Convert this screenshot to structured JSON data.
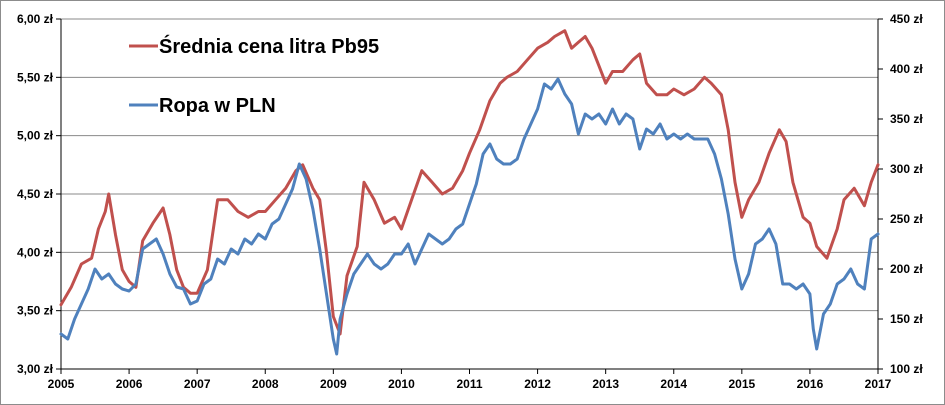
{
  "chart_data": {
    "type": "line",
    "x_ticks": [
      "2005",
      "2006",
      "2007",
      "2008",
      "2009",
      "2010",
      "2011",
      "2012",
      "2013",
      "2014",
      "2015",
      "2016",
      "2017"
    ],
    "xlim": [
      2005,
      2017
    ],
    "left_axis": {
      "ylim": [
        3.0,
        6.0
      ],
      "ticks": [
        3.0,
        3.5,
        4.0,
        4.5,
        5.0,
        5.5,
        6.0
      ],
      "tick_labels": [
        "3,00 zł",
        "3,50 zł",
        "4,00 zł",
        "4,50 zł",
        "5,00 zł",
        "5,50 zł",
        "6,00 zł"
      ]
    },
    "right_axis": {
      "ylim": [
        100,
        450
      ],
      "ticks": [
        100,
        150,
        200,
        250,
        300,
        350,
        400,
        450
      ],
      "tick_labels": [
        "100 zł",
        "150 zł",
        "200 zł",
        "250 zł",
        "300 zł",
        "350 zł",
        "400 zł",
        "450 zł"
      ]
    },
    "grid": true,
    "legend_position": "top-left",
    "series": [
      {
        "name": "Średnia cena litra Pb95",
        "axis": "left",
        "color": "#c0504d",
        "x": [
          2005.0,
          2005.15,
          2005.3,
          2005.45,
          2005.55,
          2005.65,
          2005.7,
          2005.8,
          2005.9,
          2006.0,
          2006.1,
          2006.2,
          2006.35,
          2006.5,
          2006.6,
          2006.7,
          2006.8,
          2006.9,
          2007.0,
          2007.15,
          2007.3,
          2007.45,
          2007.6,
          2007.75,
          2007.9,
          2008.0,
          2008.15,
          2008.3,
          2008.45,
          2008.55,
          2008.7,
          2008.8,
          2008.9,
          2009.0,
          2009.1,
          2009.2,
          2009.35,
          2009.45,
          2009.6,
          2009.75,
          2009.9,
          2010.0,
          2010.15,
          2010.3,
          2010.45,
          2010.6,
          2010.75,
          2010.9,
          2011.0,
          2011.15,
          2011.3,
          2011.45,
          2011.55,
          2011.7,
          2011.85,
          2012.0,
          2012.15,
          2012.25,
          2012.4,
          2012.5,
          2012.6,
          2012.7,
          2012.8,
          2012.9,
          2013.0,
          2013.1,
          2013.25,
          2013.4,
          2013.5,
          2013.6,
          2013.75,
          2013.9,
          2014.0,
          2014.15,
          2014.3,
          2014.45,
          2014.55,
          2014.7,
          2014.8,
          2014.9,
          2015.0,
          2015.1,
          2015.25,
          2015.4,
          2015.55,
          2015.65,
          2015.75,
          2015.9,
          2016.0,
          2016.1,
          2016.25,
          2016.4,
          2016.5,
          2016.65,
          2016.8,
          2016.9,
          2017.0
        ],
        "values": [
          3.55,
          3.7,
          3.9,
          3.95,
          4.2,
          4.35,
          4.5,
          4.15,
          3.85,
          3.75,
          3.7,
          4.1,
          4.25,
          4.38,
          4.15,
          3.85,
          3.7,
          3.65,
          3.65,
          3.85,
          4.45,
          4.45,
          4.35,
          4.3,
          4.35,
          4.35,
          4.45,
          4.55,
          4.7,
          4.75,
          4.55,
          4.45,
          4.0,
          3.45,
          3.3,
          3.8,
          4.05,
          4.6,
          4.45,
          4.25,
          4.3,
          4.2,
          4.45,
          4.7,
          4.6,
          4.5,
          4.55,
          4.7,
          4.85,
          5.05,
          5.3,
          5.45,
          5.5,
          5.55,
          5.65,
          5.75,
          5.8,
          5.85,
          5.9,
          5.75,
          5.8,
          5.85,
          5.75,
          5.6,
          5.45,
          5.55,
          5.55,
          5.65,
          5.7,
          5.45,
          5.35,
          5.35,
          5.4,
          5.35,
          5.4,
          5.5,
          5.45,
          5.35,
          5.05,
          4.6,
          4.3,
          4.45,
          4.6,
          4.85,
          5.05,
          4.95,
          4.6,
          4.3,
          4.25,
          4.05,
          3.95,
          4.2,
          4.45,
          4.55,
          4.4,
          4.6,
          4.75
        ]
      },
      {
        "name": "Ropa w PLN",
        "axis": "right",
        "color": "#4f81bd",
        "x": [
          2005.0,
          2005.1,
          2005.2,
          2005.3,
          2005.4,
          2005.5,
          2005.6,
          2005.7,
          2005.8,
          2005.9,
          2006.0,
          2006.1,
          2006.2,
          2006.3,
          2006.4,
          2006.5,
          2006.6,
          2006.7,
          2006.8,
          2006.9,
          2007.0,
          2007.1,
          2007.2,
          2007.3,
          2007.4,
          2007.5,
          2007.6,
          2007.7,
          2007.8,
          2007.9,
          2008.0,
          2008.1,
          2008.2,
          2008.3,
          2008.4,
          2008.5,
          2008.6,
          2008.7,
          2008.8,
          2008.9,
          2009.0,
          2009.05,
          2009.1,
          2009.2,
          2009.3,
          2009.4,
          2009.5,
          2009.6,
          2009.7,
          2009.8,
          2009.9,
          2010.0,
          2010.1,
          2010.2,
          2010.3,
          2010.4,
          2010.5,
          2010.6,
          2010.7,
          2010.8,
          2010.9,
          2011.0,
          2011.1,
          2011.2,
          2011.3,
          2011.4,
          2011.5,
          2011.6,
          2011.7,
          2011.8,
          2011.9,
          2012.0,
          2012.1,
          2012.2,
          2012.3,
          2012.4,
          2012.5,
          2012.6,
          2012.7,
          2012.8,
          2012.9,
          2013.0,
          2013.1,
          2013.2,
          2013.3,
          2013.4,
          2013.5,
          2013.6,
          2013.7,
          2013.8,
          2013.9,
          2014.0,
          2014.1,
          2014.2,
          2014.3,
          2014.4,
          2014.5,
          2014.6,
          2014.7,
          2014.8,
          2014.9,
          2015.0,
          2015.1,
          2015.2,
          2015.3,
          2015.4,
          2015.5,
          2015.6,
          2015.7,
          2015.8,
          2015.9,
          2016.0,
          2016.05,
          2016.1,
          2016.2,
          2016.3,
          2016.4,
          2016.5,
          2016.6,
          2016.7,
          2016.8,
          2016.9,
          2017.0
        ],
        "values": [
          135,
          130,
          150,
          165,
          180,
          200,
          190,
          195,
          185,
          180,
          178,
          185,
          220,
          225,
          230,
          215,
          195,
          182,
          180,
          165,
          168,
          185,
          190,
          210,
          205,
          220,
          215,
          230,
          225,
          235,
          230,
          245,
          250,
          265,
          280,
          305,
          290,
          260,
          220,
          175,
          130,
          115,
          150,
          175,
          195,
          205,
          215,
          205,
          200,
          205,
          215,
          215,
          225,
          205,
          220,
          235,
          230,
          225,
          230,
          240,
          245,
          265,
          285,
          315,
          325,
          310,
          305,
          305,
          310,
          330,
          345,
          360,
          385,
          380,
          390,
          375,
          365,
          335,
          355,
          350,
          355,
          345,
          360,
          345,
          355,
          350,
          320,
          340,
          335,
          345,
          330,
          335,
          330,
          335,
          330,
          330,
          330,
          315,
          290,
          255,
          210,
          180,
          195,
          225,
          230,
          240,
          225,
          185,
          185,
          180,
          185,
          175,
          140,
          120,
          155,
          165,
          185,
          190,
          200,
          185,
          180,
          230,
          235
        ]
      }
    ]
  }
}
